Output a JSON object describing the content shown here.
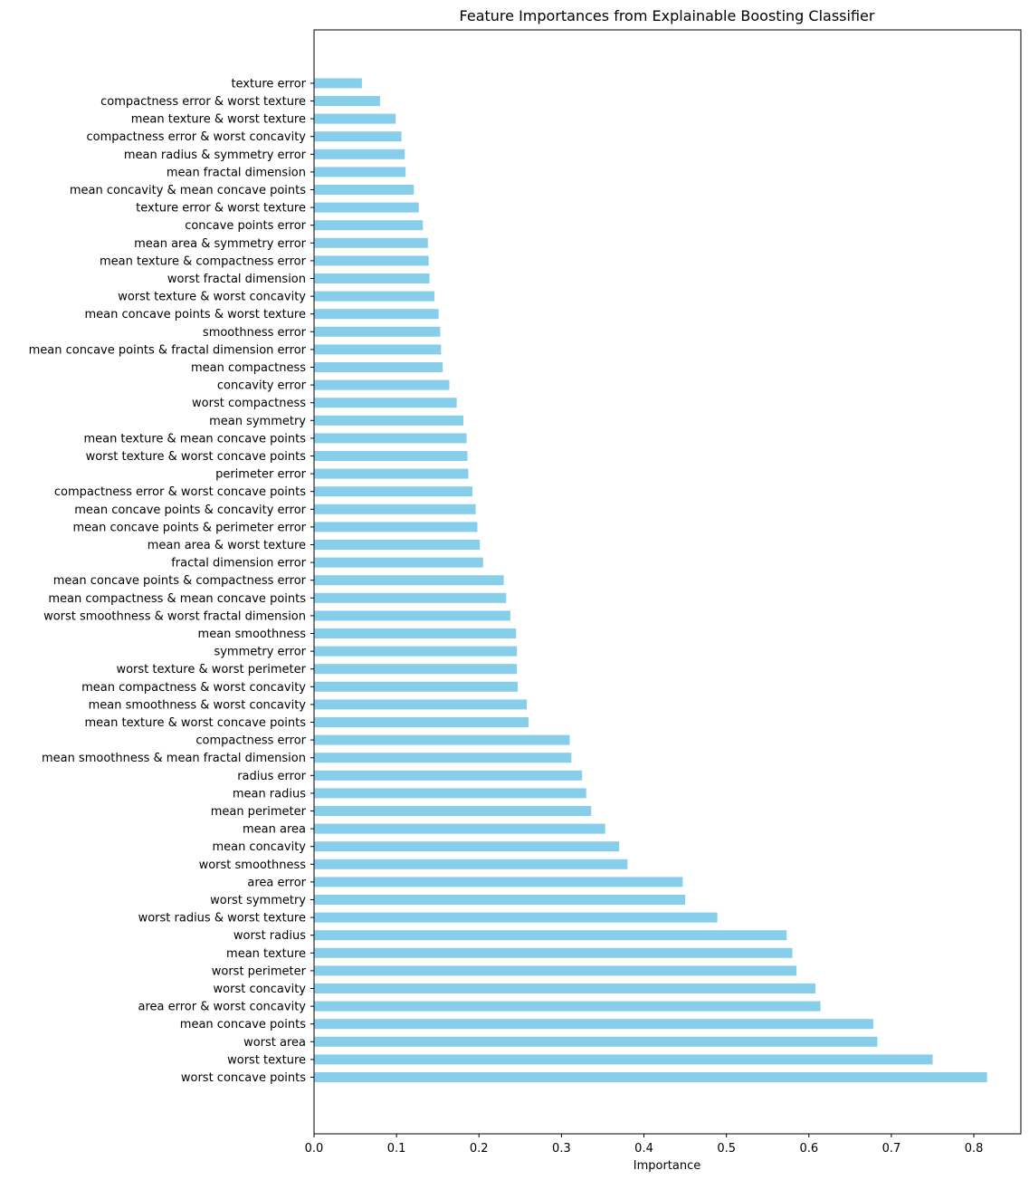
{
  "chart_data": {
    "type": "bar",
    "orientation": "horizontal",
    "title": "Feature Importances from Explainable Boosting Classifier",
    "xlabel": "Importance",
    "ylabel": "",
    "xlim": [
      0,
      0.857
    ],
    "xticks": [
      0.0,
      0.1,
      0.2,
      0.3,
      0.4,
      0.5,
      0.6,
      0.7,
      0.8
    ],
    "xtick_labels": [
      "0.0",
      "0.1",
      "0.2",
      "0.3",
      "0.4",
      "0.5",
      "0.6",
      "0.7",
      "0.8"
    ],
    "grid": false,
    "bar_color": "#87CEEB",
    "categories": [
      "worst concave points",
      "worst texture",
      "worst area",
      "mean concave points",
      "area error & worst concavity",
      "worst concavity",
      "worst perimeter",
      "mean texture",
      "worst radius",
      "worst radius & worst texture",
      "worst symmetry",
      "area error",
      "worst smoothness",
      "mean concavity",
      "mean area",
      "mean perimeter",
      "mean radius",
      "radius error",
      "mean smoothness & mean fractal dimension",
      "compactness error",
      "mean texture & worst concave points",
      "mean smoothness & worst concavity",
      "mean compactness & worst concavity",
      "worst texture & worst perimeter",
      "symmetry error",
      "mean smoothness",
      "worst smoothness & worst fractal dimension",
      "mean compactness & mean concave points",
      "mean concave points & compactness error",
      "fractal dimension error",
      "mean area & worst texture",
      "mean concave points & perimeter error",
      "mean concave points & concavity error",
      "compactness error & worst concave points",
      "perimeter error",
      "worst texture & worst concave points",
      "mean texture & mean concave points",
      "mean symmetry",
      "worst compactness",
      "concavity error",
      "mean compactness",
      "mean concave points & fractal dimension error",
      "smoothness error",
      "mean concave points & worst texture",
      "worst texture & worst concavity",
      "worst fractal dimension",
      "mean texture & compactness error",
      "mean area & symmetry error",
      "concave points error",
      "texture error & worst texture",
      "mean concavity & mean concave points",
      "mean fractal dimension",
      "mean radius & symmetry error",
      "compactness error & worst concavity",
      "mean texture & worst texture",
      "compactness error & worst texture",
      "texture error"
    ],
    "values": [
      0.816,
      0.75,
      0.683,
      0.678,
      0.614,
      0.608,
      0.585,
      0.58,
      0.573,
      0.489,
      0.45,
      0.447,
      0.38,
      0.37,
      0.353,
      0.336,
      0.33,
      0.325,
      0.312,
      0.31,
      0.26,
      0.258,
      0.247,
      0.246,
      0.246,
      0.245,
      0.238,
      0.233,
      0.23,
      0.205,
      0.201,
      0.198,
      0.196,
      0.192,
      0.187,
      0.186,
      0.185,
      0.181,
      0.173,
      0.164,
      0.156,
      0.154,
      0.153,
      0.151,
      0.146,
      0.14,
      0.139,
      0.138,
      0.132,
      0.127,
      0.121,
      0.111,
      0.11,
      0.106,
      0.099,
      0.08,
      0.058
    ]
  }
}
